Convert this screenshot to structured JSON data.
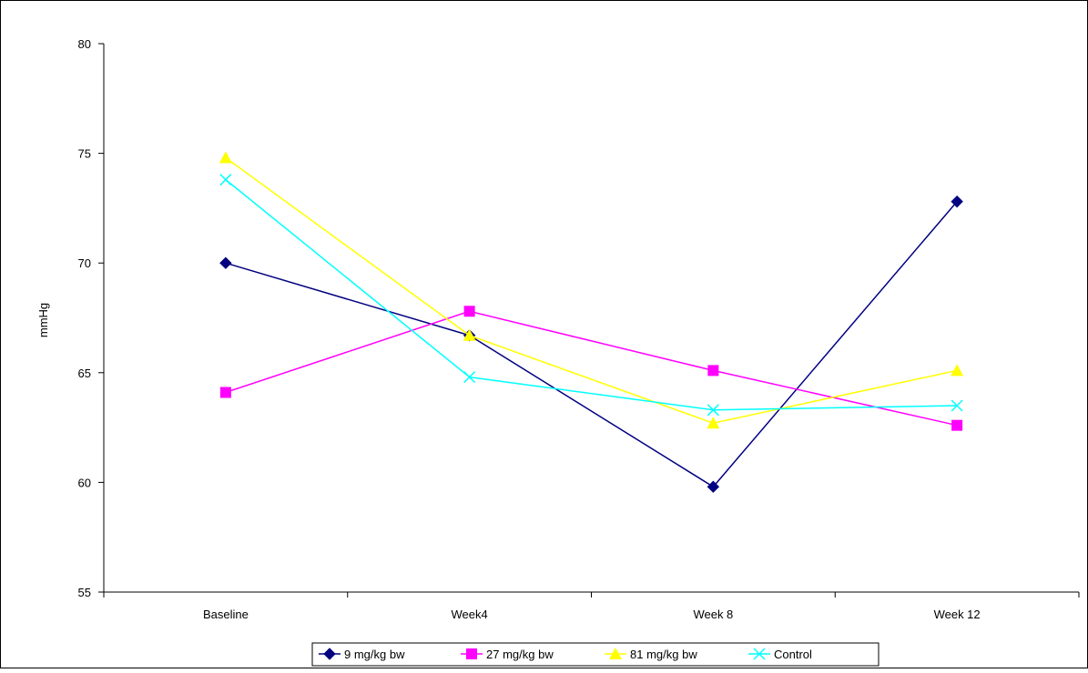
{
  "chart_data": {
    "type": "line",
    "title": "",
    "xlabel": "",
    "ylabel": "mmHg",
    "categories": [
      "Baseline",
      "Week4",
      "Week 8",
      "Week 12"
    ],
    "ylim": [
      55,
      80
    ],
    "yticks": [
      "55",
      "60",
      "65",
      "70",
      "75",
      "80"
    ],
    "grid": false,
    "legend_position": "bottom",
    "series": [
      {
        "name": "9 mg/kg bw",
        "values": [
          70.0,
          66.7,
          59.8,
          72.8
        ],
        "color": "#000080",
        "marker": "diamond"
      },
      {
        "name": "27 mg/kg bw",
        "values": [
          64.1,
          67.8,
          65.1,
          62.6
        ],
        "color": "#ff00ff",
        "marker": "square"
      },
      {
        "name": "81 mg/kg bw",
        "values": [
          74.8,
          66.7,
          62.7,
          65.1
        ],
        "color": "#ffff00",
        "marker": "triangle"
      },
      {
        "name": "Control",
        "values": [
          73.8,
          64.8,
          63.3,
          63.5
        ],
        "color": "#00ffff",
        "marker": "x"
      }
    ]
  }
}
